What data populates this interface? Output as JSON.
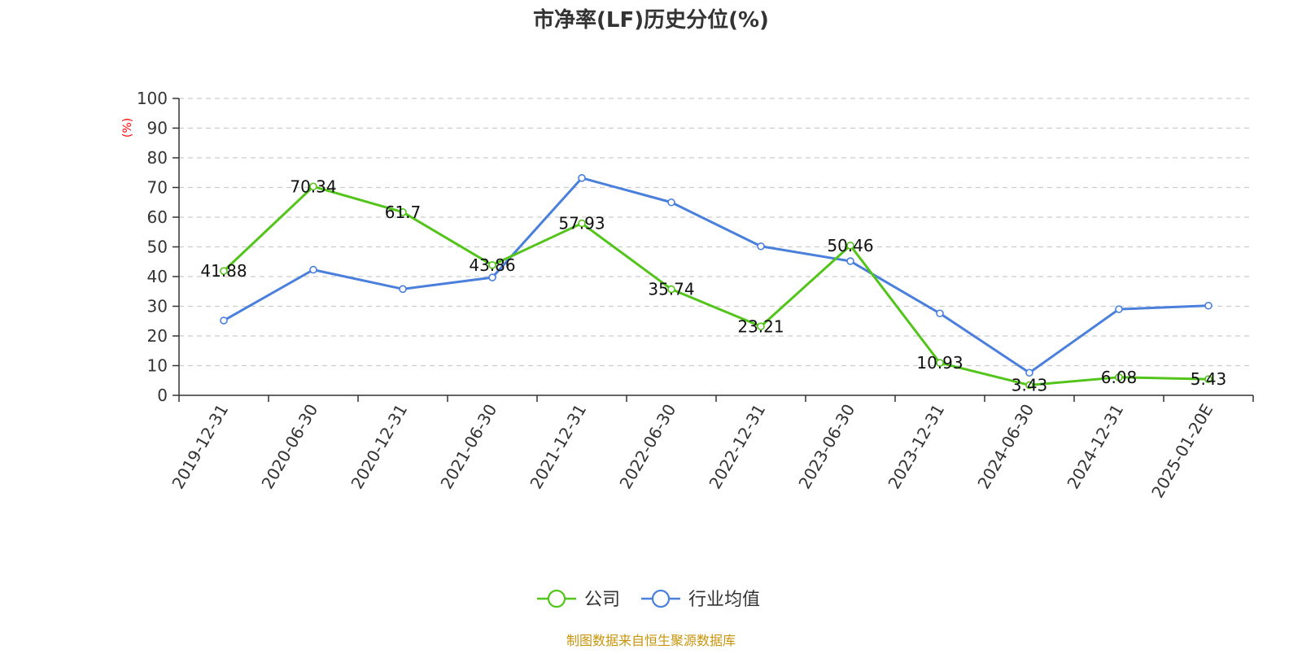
{
  "chart_data": {
    "type": "line",
    "title": "市净率(LF)历史分位(%)",
    "ylabel": "(%)",
    "xlabel": "",
    "ylim": [
      0,
      100
    ],
    "yticks": [
      "0",
      "10",
      "20",
      "30",
      "40",
      "50",
      "60",
      "70",
      "80",
      "90",
      "100"
    ],
    "grid": true,
    "legend_position": "bottom-center",
    "categories": [
      "2019-12-31",
      "2020-06-30",
      "2020-12-31",
      "2021-06-30",
      "2021-12-31",
      "2022-06-30",
      "2022-12-31",
      "2023-06-30",
      "2023-12-31",
      "2024-06-30",
      "2024-12-31",
      "2025-01-20E"
    ],
    "series": [
      {
        "name": "公司",
        "color": "#52c41a",
        "values": [
          41.88,
          70.34,
          61.7,
          43.86,
          57.93,
          35.74,
          23.21,
          50.46,
          10.93,
          3.43,
          6.08,
          5.43
        ],
        "labels": [
          "41.88",
          "70.34",
          "61.7",
          "43.86",
          "57.93",
          "35.74",
          "23.21",
          "50.46",
          "10.93",
          "3.43",
          "6.08",
          "5.43"
        ]
      },
      {
        "name": "行业均值",
        "color": "#4a7fdc",
        "values": [
          25.2,
          42.3,
          35.8,
          39.7,
          73.2,
          65.0,
          50.2,
          45.2,
          27.6,
          7.6,
          29.0,
          30.2
        ]
      }
    ]
  },
  "source_note": "制图数据来自恒生聚源数据库"
}
